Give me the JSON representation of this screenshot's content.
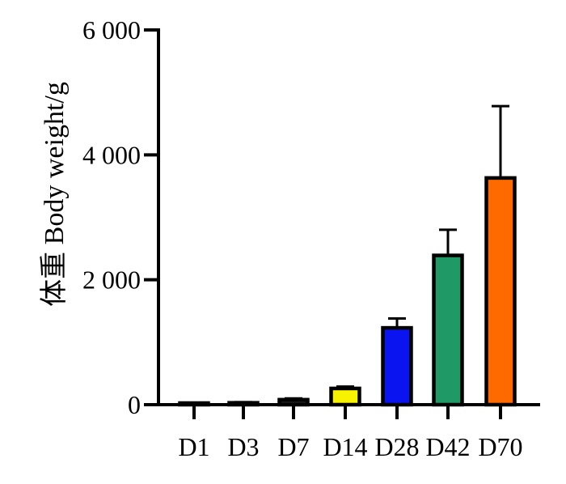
{
  "chart_data": {
    "type": "bar",
    "title": "",
    "xlabel": "",
    "ylabel": "体重 Body weight/g",
    "categories": [
      "D1",
      "D3",
      "D7",
      "D14",
      "D28",
      "D42",
      "D70"
    ],
    "values": [
      20,
      30,
      80,
      260,
      1230,
      2390,
      3630
    ],
    "error_upper": [
      30,
      40,
      100,
      290,
      1380,
      2800,
      4780
    ],
    "bar_colors": [
      "#1a1a1a",
      "#1a1a1a",
      "#1a1a1a",
      "#f7f200",
      "#0a14f0",
      "#1f9a66",
      "#ff6a00"
    ],
    "ylim": [
      0,
      6000
    ],
    "yticks": [
      0,
      2000,
      4000,
      6000
    ],
    "ytick_labels": [
      "0",
      "2 000",
      "4 000",
      "6 000"
    ],
    "grid": false,
    "legend": "none"
  }
}
